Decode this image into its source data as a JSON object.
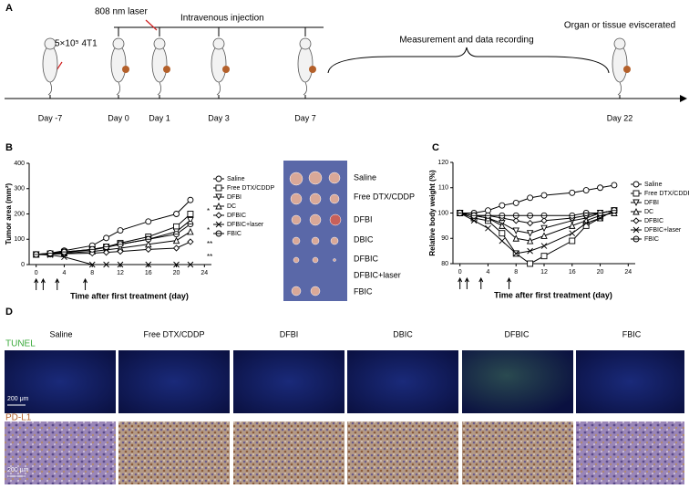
{
  "panel_labels": [
    "A",
    "B",
    "C",
    "D"
  ],
  "timeline": {
    "dose_label": "5×10⁵ 4T1",
    "laser_label": "808 nm laser",
    "injection_label": "Intravenous injection",
    "measure_label": "Measurement and data recording",
    "end_label": "Organ or tissue eviscerated",
    "days": [
      "Day -7",
      "Day 0",
      "Day 1",
      "Day 3",
      "Day 7",
      "Day 22"
    ]
  },
  "chart_data": [
    {
      "type": "line",
      "ylabel": "Tumor area (mm²)",
      "xlabel": "Time after first treatment (day)",
      "x": [
        0,
        2,
        4,
        8,
        10,
        12,
        16,
        20,
        22
      ],
      "xlim": [
        -1,
        25
      ],
      "xticks": [
        0,
        4,
        8,
        12,
        16,
        20,
        24
      ],
      "ylim": [
        0,
        400
      ],
      "yticks": [
        0,
        100,
        200,
        300,
        400
      ],
      "annotations": [
        "*",
        "*",
        "**",
        "**"
      ],
      "series": [
        {
          "name": "Saline",
          "color": "#000000",
          "marker": "circle",
          "values": [
            40,
            45,
            55,
            75,
            105,
            135,
            170,
            200,
            255
          ]
        },
        {
          "name": "Free DTX/CDDP",
          "color": "#000000",
          "marker": "square",
          "values": [
            40,
            43,
            50,
            60,
            70,
            85,
            110,
            150,
            200
          ]
        },
        {
          "name": "DFBI",
          "color": "#000000",
          "marker": "tri-down",
          "values": [
            40,
            42,
            48,
            58,
            68,
            80,
            100,
            130,
            175
          ]
        },
        {
          "name": "DC",
          "color": "#000000",
          "marker": "tri-up",
          "values": [
            40,
            42,
            45,
            52,
            58,
            65,
            80,
            95,
            130
          ]
        },
        {
          "name": "DFBIC",
          "color": "#000000",
          "marker": "diamond",
          "values": [
            40,
            41,
            43,
            45,
            48,
            52,
            60,
            65,
            90
          ]
        },
        {
          "name": "DFBIC+laser",
          "color": "#000000",
          "marker": "cross",
          "values": [
            40,
            38,
            30,
            0,
            0,
            0,
            0,
            0,
            0
          ]
        },
        {
          "name": "FBIC",
          "color": "#000000",
          "marker": "circle-bar",
          "values": [
            40,
            45,
            50,
            60,
            70,
            80,
            100,
            120,
            160
          ]
        }
      ]
    },
    {
      "type": "line",
      "ylabel": "Relative body weight (%)",
      "xlabel": "Time after first treatment (day)",
      "x": [
        0,
        2,
        4,
        6,
        8,
        10,
        12,
        16,
        18,
        20,
        22
      ],
      "xlim": [
        -1,
        25
      ],
      "xticks": [
        0,
        4,
        8,
        12,
        16,
        20,
        24
      ],
      "ylim": [
        80,
        120
      ],
      "yticks": [
        80,
        90,
        100,
        110,
        120
      ],
      "series": [
        {
          "name": "Saline",
          "color": "#000000",
          "marker": "circle",
          "values": [
            100,
            100,
            101,
            103,
            104,
            106,
            107,
            108,
            109,
            110,
            111
          ]
        },
        {
          "name": "Free DTX/CDDP",
          "color": "#000000",
          "marker": "square",
          "values": [
            100,
            98,
            97,
            92,
            84,
            80,
            83,
            89,
            95,
            98,
            101
          ]
        },
        {
          "name": "DFBI",
          "color": "#000000",
          "marker": "tri-down",
          "values": [
            100,
            99,
            98,
            96,
            93,
            92,
            94,
            97,
            98,
            100,
            101
          ]
        },
        {
          "name": "DC",
          "color": "#000000",
          "marker": "tri-up",
          "values": [
            100,
            99,
            98,
            95,
            90,
            89,
            91,
            95,
            97,
            99,
            100
          ]
        },
        {
          "name": "DFBIC",
          "color": "#000000",
          "marker": "diamond",
          "values": [
            100,
            99,
            99,
            98,
            97,
            96,
            97,
            98,
            99,
            100,
            101
          ]
        },
        {
          "name": "DFBIC+laser",
          "color": "#000000",
          "marker": "cross",
          "values": [
            100,
            97,
            94,
            89,
            84,
            85,
            87,
            92,
            96,
            98,
            101
          ]
        },
        {
          "name": "FBIC",
          "color": "#000000",
          "marker": "circle-bar",
          "values": [
            100,
            99,
            99,
            99,
            99,
            99,
            99,
            99,
            100,
            100,
            101
          ]
        }
      ]
    }
  ],
  "tumor_photo": {
    "labels": [
      "Saline",
      "Free DTX/CDDP",
      "DFBI",
      "DBIC",
      "DFBIC",
      "DFBIC+laser",
      "FBIC"
    ]
  },
  "staining": {
    "columns": [
      "Saline",
      "Free DTX/CDDP",
      "DFBI",
      "DBIC",
      "DFBIC",
      "FBIC"
    ],
    "rows": [
      "TUNEL",
      "PD-L1"
    ],
    "scale_bar": "200 μm"
  }
}
